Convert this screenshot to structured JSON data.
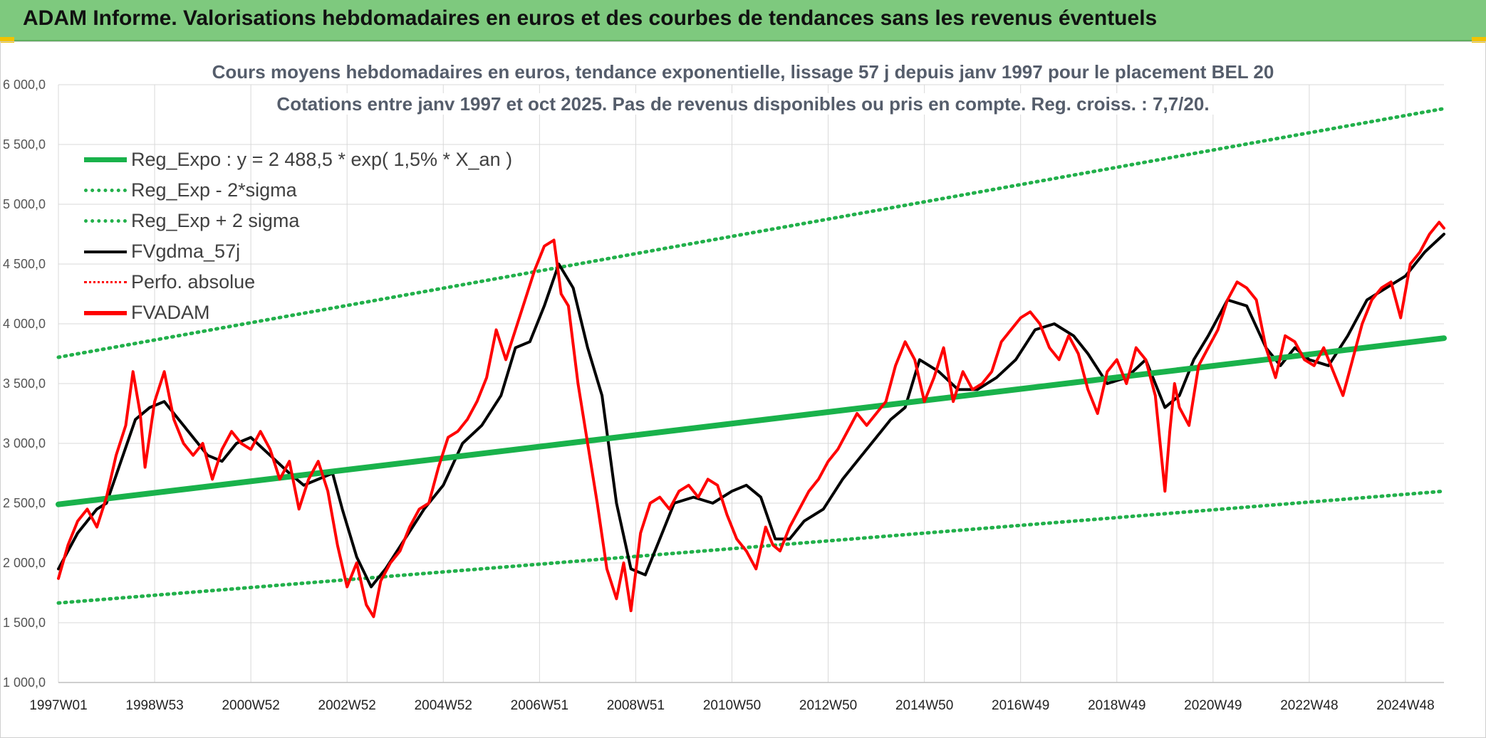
{
  "header": {
    "title": "ADAM Informe. Valorisations hebdomadaires en euros et des courbes de tendances sans les revenus éventuels"
  },
  "colors": {
    "banner_bg": "#7ec97e",
    "trend_green": "#19b24b",
    "band_green": "#22b04b",
    "fv_black": "#000000",
    "fvadam_red": "#ff0000",
    "grid": "#d9d9d9"
  },
  "chart_data": {
    "type": "line",
    "title": "Cours moyens hebdomadaires en euros, tendance exponentielle, lissage 57 j depuis janv 1997 pour le placement BEL 20",
    "subtitle": "Cotations entre janv 1997 et oct 2025. Pas de revenus disponibles ou pris en compte. Reg. croiss. : 7,7/20.",
    "x_unit": "year",
    "xlim": [
      1997.0,
      2025.8
    ],
    "ylim": [
      1000,
      6000
    ],
    "y_ticks": [
      1000,
      1500,
      2000,
      2500,
      3000,
      3500,
      4000,
      4500,
      5000,
      5500,
      6000
    ],
    "y_tick_labels": [
      "1 000,0",
      "1 500,0",
      "2 000,0",
      "2 500,0",
      "3 000,0",
      "3 500,0",
      "4 000,0",
      "4 500,0",
      "5 000,0",
      "5 500,0",
      "6 000,0"
    ],
    "x_tick_labels": [
      "1997W01",
      "1998W53",
      "2000W52",
      "2002W52",
      "2004W52",
      "2006W51",
      "2008W51",
      "2010W50",
      "2012W50",
      "2014W50",
      "2016W49",
      "2018W49",
      "2020W49",
      "2022W48",
      "2024W48"
    ],
    "x_tick_positions": [
      1997.0,
      1999.0,
      2001.0,
      2003.0,
      2005.0,
      2007.0,
      2009.0,
      2011.0,
      2013.0,
      2015.0,
      2017.0,
      2019.0,
      2021.0,
      2023.0,
      2025.0
    ],
    "grid": true,
    "legend_position": "top-left",
    "legend": [
      {
        "label": "Reg_Expo : y = 2 488,5 * exp( 1,5% *  X_an )",
        "color": "#19b24b",
        "style": "solid-thick"
      },
      {
        "label": "Reg_Exp - 2*sigma",
        "color": "#22b04b",
        "style": "dotted"
      },
      {
        "label": "Reg_Exp + 2 sigma",
        "color": "#22b04b",
        "style": "dotted"
      },
      {
        "label": "FVgdma_57j",
        "color": "#000000",
        "style": "solid"
      },
      {
        "label": "Perfo. absolue",
        "color": "#ff0000",
        "style": "dotted"
      },
      {
        "label": "FVADAM",
        "color": "#ff0000",
        "style": "solid-thick"
      }
    ],
    "series": [
      {
        "name": "Reg_Expo",
        "x": [
          1997.0,
          2025.8
        ],
        "y": [
          2490,
          3880
        ]
      },
      {
        "name": "Reg_Exp - 2*sigma",
        "x": [
          1997.0,
          2025.8
        ],
        "y": [
          1665,
          2600
        ]
      },
      {
        "name": "Reg_Exp + 2 sigma",
        "x": [
          1997.0,
          2025.8
        ],
        "y": [
          3720,
          5800
        ]
      },
      {
        "name": "FVgdma_57j",
        "x": [
          1997.0,
          1997.4,
          1997.8,
          1998.0,
          1998.3,
          1998.6,
          1998.9,
          1999.2,
          1999.5,
          1999.8,
          2000.1,
          2000.4,
          2000.7,
          2001.0,
          2001.4,
          2001.8,
          2002.1,
          2002.4,
          2002.7,
          2002.9,
          2003.2,
          2003.5,
          2003.8,
          2004.2,
          2004.6,
          2005.0,
          2005.4,
          2005.8,
          2006.2,
          2006.5,
          2006.8,
          2007.1,
          2007.4,
          2007.7,
          2008.0,
          2008.3,
          2008.6,
          2008.9,
          2009.2,
          2009.5,
          2009.8,
          2010.2,
          2010.6,
          2011.0,
          2011.3,
          2011.6,
          2011.9,
          2012.2,
          2012.5,
          2012.9,
          2013.3,
          2013.7,
          2014.0,
          2014.3,
          2014.6,
          2014.9,
          2015.3,
          2015.7,
          2016.1,
          2016.5,
          2016.9,
          2017.3,
          2017.7,
          2018.1,
          2018.4,
          2018.8,
          2019.2,
          2019.6,
          2020.0,
          2020.3,
          2020.6,
          2020.9,
          2021.3,
          2021.7,
          2022.1,
          2022.4,
          2022.7,
          2023.0,
          2023.4,
          2023.8,
          2024.2,
          2024.6,
          2025.0,
          2025.4,
          2025.8
        ],
        "y": [
          1950,
          2250,
          2450,
          2500,
          2850,
          3200,
          3300,
          3350,
          3200,
          3050,
          2900,
          2850,
          3000,
          3050,
          2900,
          2750,
          2650,
          2700,
          2750,
          2450,
          2050,
          1800,
          1950,
          2200,
          2450,
          2650,
          3000,
          3150,
          3400,
          3800,
          3850,
          4150,
          4500,
          4300,
          3800,
          3400,
          2500,
          1950,
          1900,
          2200,
          2500,
          2550,
          2500,
          2600,
          2650,
          2550,
          2200,
          2200,
          2350,
          2450,
          2700,
          2900,
          3050,
          3200,
          3300,
          3700,
          3600,
          3450,
          3450,
          3550,
          3700,
          3950,
          4000,
          3900,
          3750,
          3500,
          3550,
          3700,
          3300,
          3400,
          3700,
          3900,
          4200,
          4150,
          3800,
          3650,
          3800,
          3700,
          3650,
          3900,
          4200,
          4300,
          4400,
          4600,
          4750
        ]
      },
      {
        "name": "FVADAM",
        "x": [
          1997.0,
          1997.2,
          1997.4,
          1997.6,
          1997.8,
          1998.0,
          1998.2,
          1998.4,
          1998.55,
          1998.7,
          1998.8,
          1999.0,
          1999.2,
          1999.4,
          1999.6,
          1999.8,
          2000.0,
          2000.2,
          2000.4,
          2000.6,
          2000.8,
          2001.0,
          2001.2,
          2001.4,
          2001.6,
          2001.8,
          2002.0,
          2002.2,
          2002.4,
          2002.6,
          2002.8,
          2003.0,
          2003.2,
          2003.4,
          2003.55,
          2003.7,
          2003.9,
          2004.1,
          2004.3,
          2004.5,
          2004.7,
          2004.9,
          2005.1,
          2005.3,
          2005.5,
          2005.7,
          2005.9,
          2006.1,
          2006.3,
          2006.5,
          2006.7,
          2006.9,
          2007.1,
          2007.3,
          2007.45,
          2007.6,
          2007.8,
          2008.0,
          2008.2,
          2008.4,
          2008.6,
          2008.75,
          2008.9,
          2009.1,
          2009.3,
          2009.5,
          2009.7,
          2009.9,
          2010.1,
          2010.3,
          2010.5,
          2010.7,
          2010.9,
          2011.1,
          2011.3,
          2011.5,
          2011.7,
          2011.85,
          2012.0,
          2012.2,
          2012.4,
          2012.6,
          2012.8,
          2013.0,
          2013.2,
          2013.4,
          2013.6,
          2013.8,
          2014.0,
          2014.2,
          2014.4,
          2014.6,
          2014.8,
          2015.0,
          2015.2,
          2015.4,
          2015.6,
          2015.8,
          2016.0,
          2016.2,
          2016.4,
          2016.6,
          2016.8,
          2017.0,
          2017.2,
          2017.4,
          2017.6,
          2017.8,
          2018.0,
          2018.2,
          2018.4,
          2018.6,
          2018.8,
          2019.0,
          2019.2,
          2019.4,
          2019.6,
          2019.8,
          2020.0,
          2020.1,
          2020.2,
          2020.3,
          2020.5,
          2020.7,
          2020.9,
          2021.1,
          2021.3,
          2021.5,
          2021.7,
          2021.9,
          2022.1,
          2022.3,
          2022.5,
          2022.7,
          2022.9,
          2023.1,
          2023.3,
          2023.5,
          2023.7,
          2023.9,
          2024.1,
          2024.3,
          2024.5,
          2024.7,
          2024.9,
          2025.1,
          2025.3,
          2025.5,
          2025.7,
          2025.8
        ],
        "y": [
          1870,
          2150,
          2350,
          2450,
          2300,
          2550,
          2900,
          3150,
          3600,
          3250,
          2800,
          3350,
          3600,
          3200,
          3000,
          2900,
          3000,
          2700,
          2950,
          3100,
          3000,
          2950,
          3100,
          2950,
          2700,
          2850,
          2450,
          2700,
          2850,
          2600,
          2150,
          1800,
          2000,
          1650,
          1550,
          1850,
          2000,
          2100,
          2300,
          2450,
          2500,
          2800,
          3050,
          3100,
          3200,
          3350,
          3550,
          3950,
          3700,
          3950,
          4200,
          4450,
          4650,
          4700,
          4250,
          4150,
          3500,
          3000,
          2500,
          1950,
          1700,
          2000,
          1600,
          2250,
          2500,
          2550,
          2450,
          2600,
          2650,
          2550,
          2700,
          2650,
          2400,
          2200,
          2100,
          1950,
          2300,
          2150,
          2100,
          2300,
          2450,
          2600,
          2700,
          2850,
          2950,
          3100,
          3250,
          3150,
          3250,
          3350,
          3650,
          3850,
          3700,
          3350,
          3550,
          3800,
          3350,
          3600,
          3450,
          3500,
          3600,
          3850,
          3950,
          4050,
          4100,
          4000,
          3800,
          3700,
          3900,
          3750,
          3450,
          3250,
          3600,
          3700,
          3500,
          3800,
          3700,
          3400,
          2600,
          3100,
          3500,
          3300,
          3150,
          3650,
          3800,
          3950,
          4200,
          4350,
          4300,
          4200,
          3800,
          3550,
          3900,
          3850,
          3700,
          3650,
          3800,
          3600,
          3400,
          3700,
          4000,
          4200,
          4300,
          4350,
          4050,
          4500,
          4600,
          4750,
          4850,
          4800
        ]
      }
    ]
  }
}
